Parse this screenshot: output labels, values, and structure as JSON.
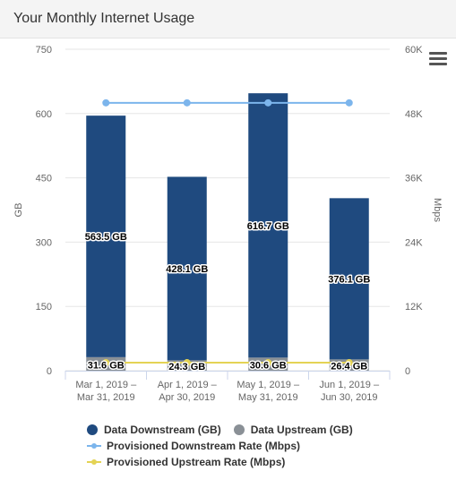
{
  "header": {
    "title": "Your Monthly Internet Usage"
  },
  "menu": {
    "icon": "hamburger-menu-icon"
  },
  "colors": {
    "downstream": "#1f4a7f",
    "upstream": "#8a9096",
    "prov_down": "#7cb5ec",
    "prov_up": "#e4d354",
    "grid": "#e6e6e6",
    "axis_text": "#666666"
  },
  "chart_data": {
    "type": "bar",
    "categories": [
      [
        "Mar 1, 2019 –",
        "Mar 31, 2019"
      ],
      [
        "Apr 1, 2019 –",
        "Apr 30, 2019"
      ],
      [
        "May 1, 2019 –",
        "May 31, 2019"
      ],
      [
        "Jun 1, 2019 –",
        "Jun 30, 2019"
      ]
    ],
    "ylabel": "GB",
    "y2label": "Mbps",
    "ylim": [
      0,
      750
    ],
    "y_ticks": [
      "0",
      "150",
      "300",
      "450",
      "600",
      "750"
    ],
    "y2lim": [
      0,
      60000
    ],
    "y2_ticks": [
      "0",
      "12K",
      "24K",
      "36K",
      "48K",
      "60K"
    ],
    "stacked": true,
    "series": [
      {
        "name": "Data Downstream (GB)",
        "axis": "left",
        "type": "bar",
        "values": [
          563.5,
          428.1,
          616.7,
          376.1
        ],
        "labels": [
          "563.5 GB",
          "428.1 GB",
          "616.7 GB",
          "376.1 GB"
        ]
      },
      {
        "name": "Data Upstream (GB)",
        "axis": "left",
        "type": "bar",
        "values": [
          31.6,
          24.3,
          30.6,
          26.4
        ],
        "labels": [
          "31.6 GB",
          "24.3 GB",
          "30.6 GB",
          "26.4 GB"
        ]
      },
      {
        "name": "Provisioned Downstream Rate (Mbps)",
        "axis": "right",
        "type": "line",
        "values": [
          50000,
          50000,
          50000,
          50000
        ]
      },
      {
        "name": "Provisioned Upstream Rate (Mbps)",
        "axis": "right",
        "type": "line",
        "values": [
          1500,
          1500,
          1500,
          1500
        ]
      }
    ],
    "legend_position": "bottom"
  }
}
